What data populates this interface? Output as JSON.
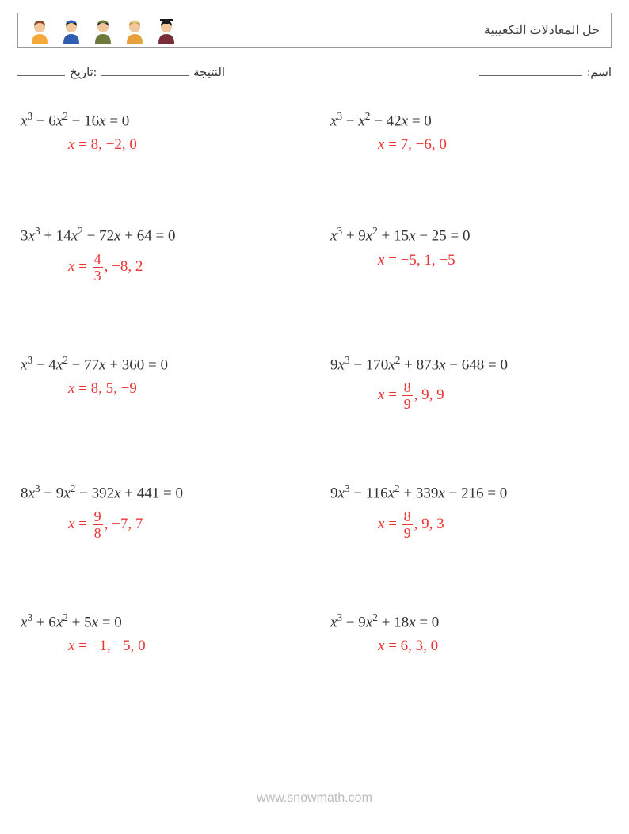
{
  "header": {
    "title": "حل المعادلات التكعيبية",
    "icons": [
      {
        "hair": "#8b4a2b",
        "top": "#f4a938",
        "skin": "#f2c79b"
      },
      {
        "hair": "#1a1a1a",
        "top": "#2f5db0",
        "skin": "#f2c79b",
        "hat": "#2f5db0"
      },
      {
        "hair": "#2b2b2b",
        "top": "#6b7a3a",
        "skin": "#f2c79b",
        "hat": "#6b7a3a"
      },
      {
        "hair": "#c98a3b",
        "top": "#e8a13a",
        "skin": "#f2c79b",
        "hat": "#d9c97a"
      },
      {
        "hair": "#1a1a1a",
        "top": "#7a2e3a",
        "skin": "#f2c79b",
        "hat": "#1a1a1a",
        "hatshape": "grad"
      }
    ]
  },
  "meta": {
    "name_label": "اسم:",
    "score_label": "النتيجة",
    "date_label": ":تاريخ"
  },
  "layout": {
    "rows": 5,
    "cols": 2,
    "equation_fontsize": 19,
    "answer_color": "#ee3333",
    "text_color": "#333333"
  },
  "problems": [
    {
      "eq_terms": [
        {
          "coef": "",
          "var": "x",
          "pow": "3",
          "sign": ""
        },
        {
          "coef": "6",
          "var": "x",
          "pow": "2",
          "sign": " − "
        },
        {
          "coef": "16",
          "var": "x",
          "pow": "",
          "sign": " − "
        }
      ],
      "rhs": "0",
      "answer_plain": "8, −2, 0"
    },
    {
      "eq_terms": [
        {
          "coef": "",
          "var": "x",
          "pow": "3",
          "sign": ""
        },
        {
          "coef": "",
          "var": "x",
          "pow": "2",
          "sign": " − "
        },
        {
          "coef": "42",
          "var": "x",
          "pow": "",
          "sign": " − "
        }
      ],
      "rhs": "0",
      "answer_plain": "7, −6, 0"
    },
    {
      "eq_terms": [
        {
          "coef": "3",
          "var": "x",
          "pow": "3",
          "sign": ""
        },
        {
          "coef": "14",
          "var": "x",
          "pow": "2",
          "sign": " + "
        },
        {
          "coef": "72",
          "var": "x",
          "pow": "",
          "sign": " − "
        },
        {
          "coef": "64",
          "var": "",
          "pow": "",
          "sign": " + "
        }
      ],
      "rhs": "0",
      "answer_frac": {
        "num": "4",
        "den": "3"
      },
      "answer_tail": ", −8, 2"
    },
    {
      "eq_terms": [
        {
          "coef": "",
          "var": "x",
          "pow": "3",
          "sign": ""
        },
        {
          "coef": "9",
          "var": "x",
          "pow": "2",
          "sign": " + "
        },
        {
          "coef": "15",
          "var": "x",
          "pow": "",
          "sign": " + "
        },
        {
          "coef": "25",
          "var": "",
          "pow": "",
          "sign": " − "
        }
      ],
      "rhs": "0",
      "answer_plain": "−5, 1, −5"
    },
    {
      "eq_terms": [
        {
          "coef": "",
          "var": "x",
          "pow": "3",
          "sign": ""
        },
        {
          "coef": "4",
          "var": "x",
          "pow": "2",
          "sign": " − "
        },
        {
          "coef": "77",
          "var": "x",
          "pow": "",
          "sign": " − "
        },
        {
          "coef": "360",
          "var": "",
          "pow": "",
          "sign": " + "
        }
      ],
      "rhs": "0",
      "answer_plain": "8, 5, −9"
    },
    {
      "eq_terms": [
        {
          "coef": "9",
          "var": "x",
          "pow": "3",
          "sign": ""
        },
        {
          "coef": "170",
          "var": "x",
          "pow": "2",
          "sign": " − "
        },
        {
          "coef": "873",
          "var": "x",
          "pow": "",
          "sign": " + "
        },
        {
          "coef": "648",
          "var": "",
          "pow": "",
          "sign": " − "
        }
      ],
      "rhs": "0",
      "answer_frac": {
        "num": "8",
        "den": "9"
      },
      "answer_tail": ", 9, 9"
    },
    {
      "eq_terms": [
        {
          "coef": "8",
          "var": "x",
          "pow": "3",
          "sign": ""
        },
        {
          "coef": "9",
          "var": "x",
          "pow": "2",
          "sign": " − "
        },
        {
          "coef": "392",
          "var": "x",
          "pow": "",
          "sign": " − "
        },
        {
          "coef": "441",
          "var": "",
          "pow": "",
          "sign": " + "
        }
      ],
      "rhs": "0",
      "answer_frac": {
        "num": "9",
        "den": "8"
      },
      "answer_tail": ", −7, 7"
    },
    {
      "eq_terms": [
        {
          "coef": "9",
          "var": "x",
          "pow": "3",
          "sign": ""
        },
        {
          "coef": "116",
          "var": "x",
          "pow": "2",
          "sign": " − "
        },
        {
          "coef": "339",
          "var": "x",
          "pow": "",
          "sign": " + "
        },
        {
          "coef": "216",
          "var": "",
          "pow": "",
          "sign": " − "
        }
      ],
      "rhs": "0",
      "answer_frac": {
        "num": "8",
        "den": "9"
      },
      "answer_tail": ", 9, 3"
    },
    {
      "eq_terms": [
        {
          "coef": "",
          "var": "x",
          "pow": "3",
          "sign": ""
        },
        {
          "coef": "6",
          "var": "x",
          "pow": "2",
          "sign": " + "
        },
        {
          "coef": "5",
          "var": "x",
          "pow": "",
          "sign": " + "
        }
      ],
      "rhs": "0",
      "answer_plain": "−1, −5, 0"
    },
    {
      "eq_terms": [
        {
          "coef": "",
          "var": "x",
          "pow": "3",
          "sign": ""
        },
        {
          "coef": "9",
          "var": "x",
          "pow": "2",
          "sign": " − "
        },
        {
          "coef": "18",
          "var": "x",
          "pow": "",
          "sign": " + "
        }
      ],
      "rhs": "0",
      "answer_plain": "6, 3, 0"
    }
  ],
  "watermark": "www.snowmath.com"
}
